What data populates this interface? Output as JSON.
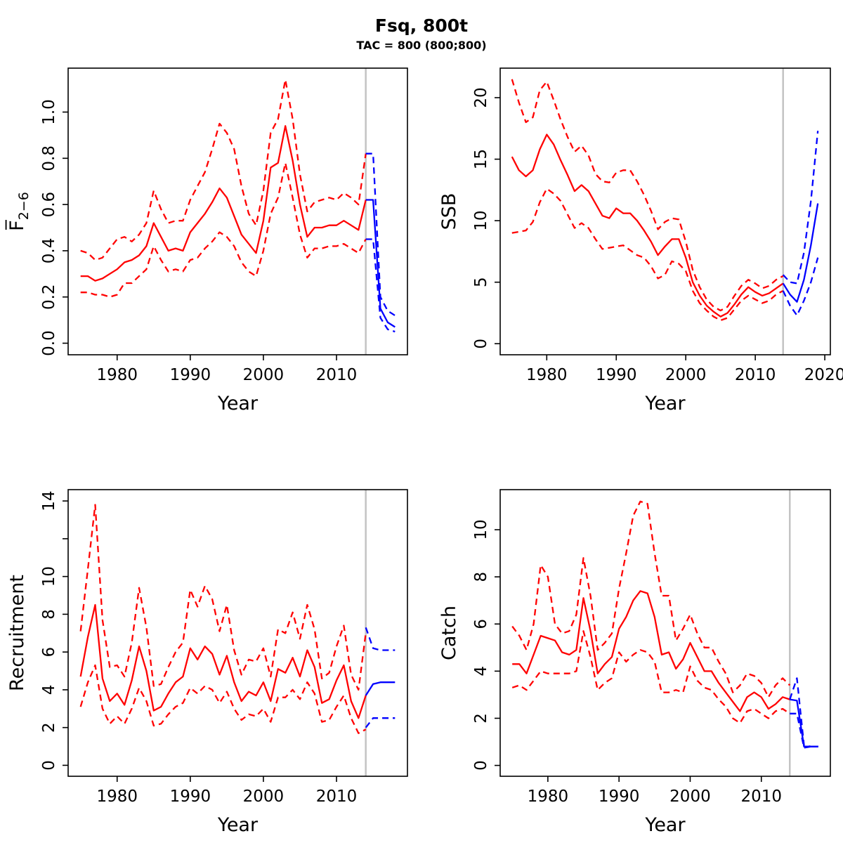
{
  "header": {
    "title": "Fsq, 800t",
    "subtitle": "TAC = 800 (800;800)"
  },
  "chart_data": {
    "type": "line",
    "layout": "2x2",
    "grid": false,
    "legend": "none",
    "xlabel": "Year",
    "divider_year": 2014,
    "colors": {
      "history": "#ff0000",
      "projection": "#0000ff",
      "divider": "#c3c3c3",
      "axis": "#000000",
      "background": "#ffffff"
    },
    "series_meaning": {
      "solid": "median",
      "dashed": "confidence interval (upper/lower)",
      "red": "historical estimate",
      "blue": "forecast after divider year"
    },
    "panels": [
      {
        "id": "fbar",
        "ylabel": {
          "main": "F̅",
          "sub": "2−6"
        },
        "xlim": [
          1973.3,
          2019.7
        ],
        "ylim": [
          -0.05,
          1.19
        ],
        "xticks": [
          {
            "v": 1980,
            "label": "1980"
          },
          {
            "v": 1990,
            "label": "1990"
          },
          {
            "v": 2000,
            "label": "2000"
          },
          {
            "v": 2010,
            "label": "2010"
          }
        ],
        "yticks": [
          {
            "v": 0.0,
            "label": "0.0"
          },
          {
            "v": 0.2,
            "label": "0.2"
          },
          {
            "v": 0.4,
            "label": "0.4"
          },
          {
            "v": 0.6,
            "label": "0.6"
          },
          {
            "v": 0.8,
            "label": "0.8"
          },
          {
            "v": 1.0,
            "label": "1.0"
          }
        ],
        "history": {
          "years_start": 1975,
          "median": [
            0.29,
            0.29,
            0.27,
            0.28,
            0.3,
            0.32,
            0.35,
            0.36,
            0.38,
            0.42,
            0.52,
            0.46,
            0.4,
            0.41,
            0.4,
            0.48,
            0.52,
            0.56,
            0.61,
            0.67,
            0.63,
            0.55,
            0.47,
            0.43,
            0.39,
            0.53,
            0.76,
            0.78,
            0.94,
            0.79,
            0.6,
            0.46,
            0.5,
            0.5,
            0.51,
            0.51,
            0.53,
            0.51,
            0.49,
            0.62
          ],
          "upper": [
            0.4,
            0.39,
            0.36,
            0.37,
            0.41,
            0.45,
            0.46,
            0.44,
            0.47,
            0.52,
            0.66,
            0.58,
            0.52,
            0.53,
            0.53,
            0.62,
            0.68,
            0.74,
            0.84,
            0.95,
            0.91,
            0.84,
            0.68,
            0.56,
            0.51,
            0.66,
            0.91,
            0.97,
            1.14,
            0.97,
            0.73,
            0.57,
            0.61,
            0.62,
            0.63,
            0.62,
            0.65,
            0.63,
            0.6,
            0.82
          ],
          "lower": [
            0.22,
            0.22,
            0.21,
            0.21,
            0.2,
            0.21,
            0.26,
            0.26,
            0.29,
            0.32,
            0.42,
            0.36,
            0.31,
            0.32,
            0.31,
            0.36,
            0.37,
            0.41,
            0.44,
            0.48,
            0.46,
            0.42,
            0.35,
            0.31,
            0.29,
            0.4,
            0.56,
            0.63,
            0.78,
            0.63,
            0.47,
            0.37,
            0.41,
            0.41,
            0.42,
            0.42,
            0.43,
            0.41,
            0.39,
            0.45
          ]
        },
        "projection": {
          "years_start": 2014,
          "median": [
            0.62,
            0.62,
            0.15,
            0.09,
            0.07
          ],
          "upper": [
            0.82,
            0.82,
            0.2,
            0.14,
            0.12
          ],
          "lower": [
            0.45,
            0.45,
            0.11,
            0.06,
            0.05
          ]
        }
      },
      {
        "id": "ssb",
        "ylabel": {
          "main": "SSB",
          "sub": ""
        },
        "xlim": [
          1973.3,
          2020.8
        ],
        "ylim": [
          -0.9,
          22.4
        ],
        "xticks": [
          {
            "v": 1980,
            "label": "1980"
          },
          {
            "v": 1990,
            "label": "1990"
          },
          {
            "v": 2000,
            "label": "2000"
          },
          {
            "v": 2010,
            "label": "2010"
          },
          {
            "v": 2020,
            "label": "2020"
          }
        ],
        "yticks": [
          {
            "v": 0,
            "label": "0"
          },
          {
            "v": 5,
            "label": "5"
          },
          {
            "v": 10,
            "label": "10"
          },
          {
            "v": 15,
            "label": "15"
          },
          {
            "v": 20,
            "label": "20"
          }
        ],
        "history": {
          "years_start": 1975,
          "median": [
            15.2,
            14.1,
            13.6,
            14.1,
            15.8,
            17.0,
            16.2,
            14.9,
            13.7,
            12.4,
            12.9,
            12.4,
            11.4,
            10.4,
            10.2,
            11.0,
            10.6,
            10.6,
            10.0,
            9.2,
            8.3,
            7.2,
            7.9,
            8.5,
            8.5,
            7.0,
            5.0,
            3.9,
            3.1,
            2.6,
            2.2,
            2.5,
            3.2,
            4.0,
            4.6,
            4.2,
            3.9,
            4.1,
            4.5,
            4.9
          ],
          "upper": [
            21.5,
            19.6,
            18.0,
            18.4,
            20.6,
            21.3,
            19.8,
            18.2,
            16.8,
            15.6,
            16.1,
            15.3,
            13.8,
            13.2,
            13.1,
            13.9,
            14.1,
            14.1,
            13.2,
            12.1,
            10.8,
            9.3,
            9.9,
            10.2,
            10.1,
            8.3,
            6.0,
            4.6,
            3.6,
            3.0,
            2.7,
            3.0,
            3.9,
            4.7,
            5.2,
            4.9,
            4.5,
            4.7,
            5.2,
            5.5
          ],
          "lower": [
            9.0,
            9.1,
            9.2,
            9.9,
            11.5,
            12.6,
            12.2,
            11.6,
            10.5,
            9.4,
            9.8,
            9.4,
            8.5,
            7.7,
            7.8,
            7.9,
            8.0,
            7.6,
            7.2,
            7.0,
            6.3,
            5.3,
            5.6,
            6.7,
            6.5,
            5.9,
            4.3,
            3.3,
            2.7,
            2.2,
            1.9,
            2.1,
            2.8,
            3.5,
            3.9,
            3.6,
            3.3,
            3.5,
            4.0,
            4.3
          ]
        },
        "projection": {
          "years_start": 2014,
          "median": [
            4.9,
            4.0,
            3.4,
            5.2,
            8.0,
            11.4
          ],
          "upper": [
            5.6,
            5.0,
            4.9,
            7.4,
            11.6,
            17.3
          ],
          "lower": [
            4.3,
            3.1,
            2.3,
            3.5,
            5.0,
            7.0
          ]
        }
      },
      {
        "id": "recruitment",
        "ylabel": {
          "main": "Recruitment",
          "sub": ""
        },
        "xlim": [
          1973.3,
          2019.7
        ],
        "ylim": [
          -0.58,
          14.6
        ],
        "xticks": [
          {
            "v": 1980,
            "label": "1980"
          },
          {
            "v": 1990,
            "label": "1990"
          },
          {
            "v": 2000,
            "label": "2000"
          },
          {
            "v": 2010,
            "label": "2010"
          }
        ],
        "yticks": [
          {
            "v": 0,
            "label": "0"
          },
          {
            "v": 2,
            "label": "2"
          },
          {
            "v": 4,
            "label": "4"
          },
          {
            "v": 6,
            "label": "6"
          },
          {
            "v": 8,
            "label": "8"
          },
          {
            "v": 10,
            "label": "10"
          },
          {
            "v": 12,
            "label": ""
          },
          {
            "v": 14,
            "label": "14"
          }
        ],
        "history": {
          "years_start": 1975,
          "median": [
            4.7,
            6.8,
            8.5,
            4.6,
            3.4,
            3.8,
            3.2,
            4.5,
            6.3,
            5.0,
            2.9,
            3.1,
            3.8,
            4.4,
            4.7,
            6.2,
            5.6,
            6.3,
            5.9,
            4.8,
            5.8,
            4.4,
            3.4,
            3.9,
            3.7,
            4.4,
            3.4,
            5.1,
            4.9,
            5.7,
            4.7,
            6.1,
            5.2,
            3.3,
            3.5,
            4.5,
            5.3,
            3.4,
            2.5,
            3.7
          ],
          "upper": [
            7.1,
            10.4,
            13.8,
            7.7,
            5.2,
            5.3,
            4.7,
            6.5,
            9.4,
            7.3,
            4.2,
            4.3,
            5.2,
            6.0,
            6.5,
            9.3,
            8.4,
            9.5,
            8.8,
            7.1,
            8.5,
            6.1,
            4.8,
            5.6,
            5.5,
            6.2,
            4.7,
            7.2,
            7.0,
            8.1,
            6.7,
            8.5,
            7.2,
            4.6,
            4.9,
            6.3,
            7.4,
            4.8,
            4.0,
            7.0
          ],
          "lower": [
            3.1,
            4.4,
            5.3,
            3.0,
            2.2,
            2.6,
            2.2,
            3.0,
            4.1,
            3.4,
            2.1,
            2.2,
            2.7,
            3.1,
            3.3,
            4.1,
            3.8,
            4.2,
            4.0,
            3.3,
            3.9,
            3.0,
            2.4,
            2.7,
            2.6,
            3.0,
            2.3,
            3.6,
            3.6,
            4.0,
            3.5,
            4.4,
            3.8,
            2.3,
            2.4,
            3.1,
            3.7,
            2.5,
            1.7,
            1.9
          ]
        },
        "projection": {
          "years_start": 2014,
          "median": [
            3.7,
            4.3,
            4.4,
            4.4,
            4.4
          ],
          "upper": [
            7.3,
            6.2,
            6.1,
            6.1,
            6.1
          ],
          "lower": [
            2.0,
            2.5,
            2.5,
            2.5,
            2.5
          ]
        }
      },
      {
        "id": "catch",
        "ylabel": {
          "main": "Catch",
          "sub": ""
        },
        "xlim": [
          1973.3,
          2019.7
        ],
        "ylim": [
          -0.46,
          11.7
        ],
        "xticks": [
          {
            "v": 1980,
            "label": "1980"
          },
          {
            "v": 1990,
            "label": "1990"
          },
          {
            "v": 2000,
            "label": "2000"
          },
          {
            "v": 2010,
            "label": "2010"
          }
        ],
        "yticks": [
          {
            "v": 0,
            "label": "0"
          },
          {
            "v": 2,
            "label": "2"
          },
          {
            "v": 4,
            "label": "4"
          },
          {
            "v": 6,
            "label": "6"
          },
          {
            "v": 8,
            "label": "8"
          },
          {
            "v": 10,
            "label": "10"
          }
        ],
        "history": {
          "years_start": 1975,
          "median": [
            4.3,
            4.3,
            3.9,
            4.7,
            5.5,
            5.4,
            5.3,
            4.8,
            4.7,
            4.9,
            7.1,
            5.7,
            3.9,
            4.3,
            4.6,
            5.8,
            6.3,
            7.0,
            7.4,
            7.3,
            6.3,
            4.7,
            4.8,
            4.1,
            4.5,
            5.2,
            4.6,
            4.0,
            4.0,
            3.5,
            3.1,
            2.7,
            2.3,
            2.9,
            3.1,
            2.9,
            2.4,
            2.6,
            2.9,
            2.8
          ],
          "upper": [
            5.9,
            5.5,
            4.9,
            6.0,
            8.5,
            8.0,
            6.0,
            5.6,
            5.7,
            6.4,
            8.8,
            7.2,
            4.9,
            5.2,
            5.6,
            7.5,
            9.0,
            10.6,
            11.2,
            11.1,
            9.0,
            7.2,
            7.2,
            5.3,
            5.8,
            6.4,
            5.6,
            5.0,
            5.0,
            4.4,
            3.9,
            3.1,
            3.4,
            3.9,
            3.8,
            3.5,
            2.9,
            3.4,
            3.7,
            3.4
          ],
          "lower": [
            3.3,
            3.4,
            3.2,
            3.6,
            4.0,
            3.9,
            3.9,
            3.9,
            3.9,
            4.0,
            5.7,
            4.6,
            3.2,
            3.5,
            3.7,
            4.8,
            4.4,
            4.7,
            4.9,
            4.8,
            4.4,
            3.1,
            3.1,
            3.2,
            3.1,
            4.2,
            3.6,
            3.3,
            3.2,
            2.8,
            2.5,
            2.0,
            1.8,
            2.3,
            2.4,
            2.2,
            2.0,
            2.3,
            2.4,
            2.2
          ]
        },
        "projection": {
          "years_start": 2014,
          "median": [
            2.8,
            2.75,
            0.8,
            0.8,
            0.8
          ],
          "upper": [
            2.8,
            3.7,
            0.85,
            0.8,
            0.8
          ],
          "lower": [
            2.2,
            2.2,
            0.75,
            0.8,
            0.8
          ]
        }
      }
    ]
  }
}
